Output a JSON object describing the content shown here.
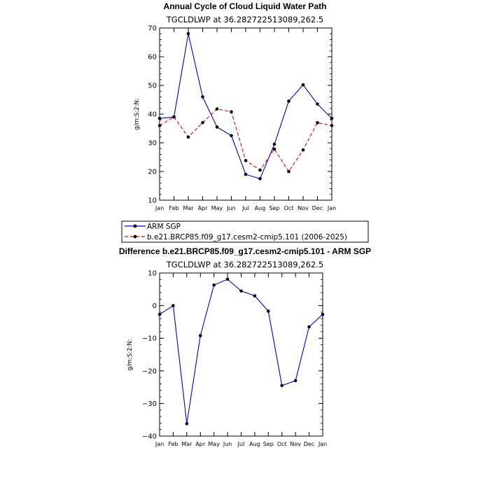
{
  "chart_data": [
    {
      "type": "line",
      "title": "Annual Cycle of Cloud Liquid Water Path",
      "subtitle": "TGCLDLWP at 36.282722513089,262.5",
      "ylabel": "g/m:S:2:N:",
      "xlabel": "",
      "categories": [
        "Jan",
        "Feb",
        "Mar",
        "Apr",
        "May",
        "Jun",
        "Jul",
        "Aug",
        "Sep",
        "Oct",
        "Nov",
        "Dec",
        "Jan"
      ],
      "ylim": [
        10,
        70
      ],
      "yticks": [
        10,
        20,
        30,
        40,
        50,
        60,
        70
      ],
      "series": [
        {
          "name": "ARM SGP",
          "color": "#0000cc",
          "dashed": false,
          "values": [
            38.5,
            39.0,
            68.0,
            46.0,
            35.5,
            32.5,
            19.0,
            17.5,
            29.5,
            44.5,
            50.2,
            43.5,
            38.5
          ]
        },
        {
          "name": "b.e21.BRCP85.f09_g17.cesm2-cmip5.101 (2006-2025)",
          "color": "#e00000",
          "dashed": true,
          "values": [
            36.0,
            39.0,
            32.0,
            37.0,
            41.8,
            40.8,
            23.8,
            20.5,
            27.8,
            20.0,
            27.5,
            37.0,
            36.0
          ]
        }
      ]
    },
    {
      "type": "line",
      "title": "Difference b.e21.BRCP85.f09_g17.cesm2-cmip5.101 - ARM SGP",
      "subtitle": "TGCLDLWP at 36.282722513089,262.5",
      "ylabel": "g/m:S:2:N:",
      "xlabel": "",
      "categories": [
        "Jan",
        "Feb",
        "Mar",
        "Apr",
        "May",
        "Jun",
        "Jul",
        "Aug",
        "Sep",
        "Oct",
        "Nov",
        "Dec",
        "Jan"
      ],
      "ylim": [
        -40,
        10
      ],
      "yticks": [
        -40,
        -30,
        -20,
        -10,
        0,
        10
      ],
      "series": [
        {
          "name": "",
          "color": "#0000cc",
          "dashed": false,
          "values": [
            -2.7,
            0.0,
            -36.2,
            -9.2,
            6.3,
            8.1,
            4.5,
            3.0,
            -1.7,
            -24.5,
            -23.0,
            -6.5,
            -2.7
          ]
        }
      ]
    }
  ]
}
